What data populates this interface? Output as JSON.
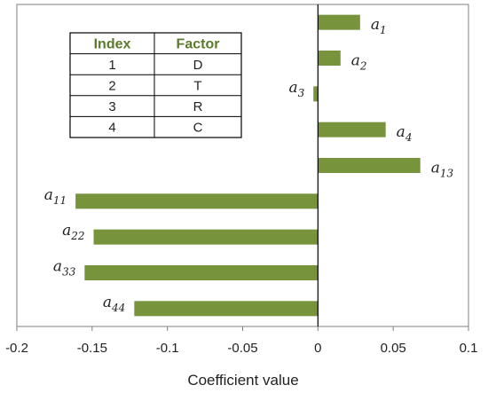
{
  "chart_data": {
    "type": "bar",
    "orientation": "horizontal",
    "categories": [
      "a1",
      "a2",
      "a3",
      "a4",
      "a13",
      "a11",
      "a22",
      "a33",
      "a44"
    ],
    "labels": [
      {
        "base": "a",
        "sub": "1"
      },
      {
        "base": "a",
        "sub": "2"
      },
      {
        "base": "a",
        "sub": "3"
      },
      {
        "base": "a",
        "sub": "4"
      },
      {
        "base": "a",
        "sub": "13"
      },
      {
        "base": "a",
        "sub": "11"
      },
      {
        "base": "a",
        "sub": "22"
      },
      {
        "base": "a",
        "sub": "33"
      },
      {
        "base": "a",
        "sub": "44"
      }
    ],
    "values": [
      0.028,
      0.015,
      -0.003,
      0.045,
      0.068,
      -0.161,
      -0.149,
      -0.155,
      -0.122
    ],
    "title": "",
    "xlabel": "Coefficient value",
    "ylabel": "",
    "xlim": [
      -0.2,
      0.1
    ],
    "xticks": [
      -0.2,
      -0.15,
      -0.1,
      -0.05,
      0,
      0.05,
      0.1
    ],
    "xtick_labels": [
      "-0.2",
      "-0.15",
      "-0.1",
      "-0.05",
      "0",
      "0.05",
      "0.1"
    ],
    "bar_color": "#77933c",
    "grid": false,
    "legend": "none"
  },
  "table": {
    "headers": [
      "Index",
      "Factor"
    ],
    "rows": [
      [
        "1",
        "D"
      ],
      [
        "2",
        "T"
      ],
      [
        "3",
        "R"
      ],
      [
        "4",
        "C"
      ]
    ],
    "header_color": "#5b7a2c"
  }
}
